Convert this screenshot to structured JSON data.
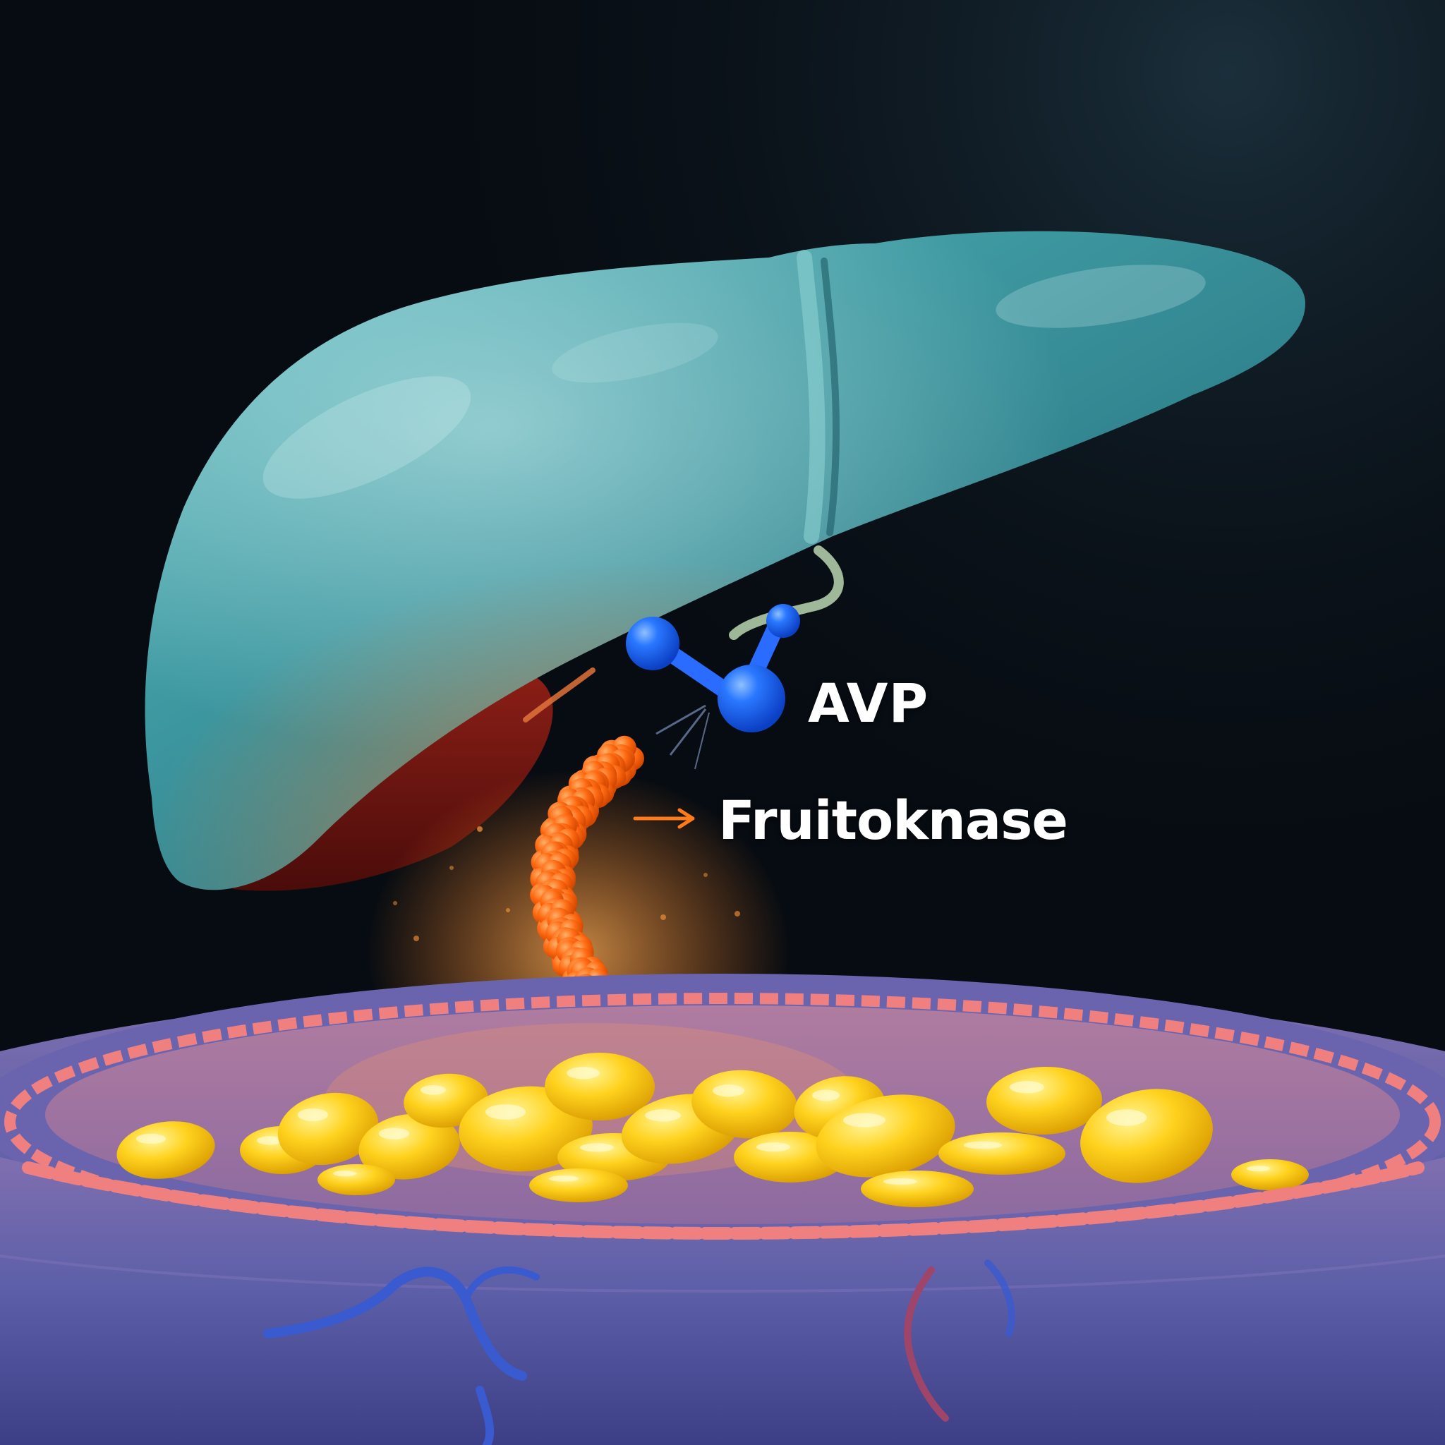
{
  "labels": {
    "avp": "AVP",
    "enzyme": "Fruitoknase"
  },
  "icons": {
    "liver": "liver-organ-illustration",
    "molecule": "avp-molecule",
    "enzyme": "enzyme-strand",
    "arrow": "arrow-right-icon",
    "cell": "cell-with-fat-droplets"
  },
  "colors": {
    "background": "#070c12",
    "liver": "#3f9aa2",
    "molecule": "#1f6bff",
    "enzyme": "#ff6a12",
    "arrow": "#ff7a1a",
    "droplets": "#ffd21e",
    "cell_wall": "#5d5fa8",
    "membrane": "#f08080"
  }
}
